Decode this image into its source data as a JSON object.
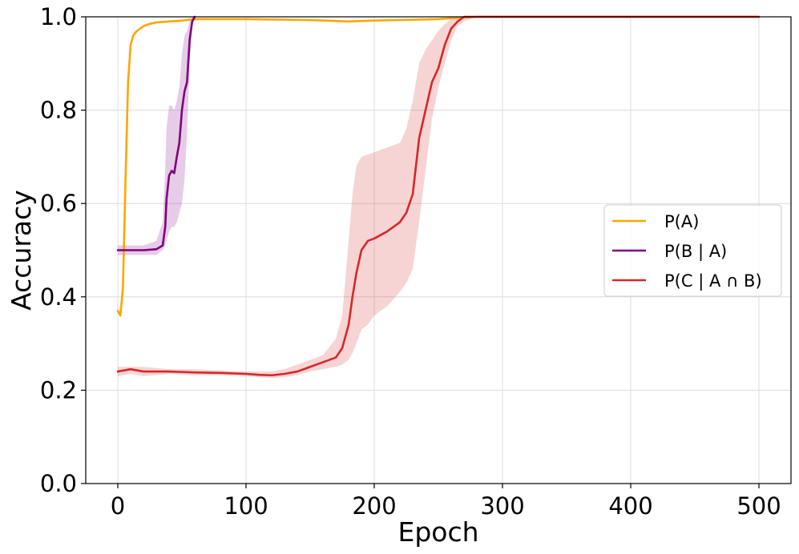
{
  "chart_data": {
    "type": "line",
    "title": "",
    "xlabel": "Epoch",
    "ylabel": "Accuracy",
    "xlim": [
      -25,
      525
    ],
    "ylim": [
      0.0,
      1.0
    ],
    "xticks": [
      0,
      100,
      200,
      300,
      400,
      500
    ],
    "yticks": [
      0.0,
      0.2,
      0.4,
      0.6,
      0.8,
      1.0
    ],
    "xtick_labels": [
      "0",
      "100",
      "200",
      "300",
      "400",
      "500"
    ],
    "ytick_labels": [
      "0.0",
      "0.2",
      "0.4",
      "0.6",
      "0.8",
      "1.0"
    ],
    "grid": true,
    "legend_position": "center-right",
    "series": [
      {
        "name": "P(A)",
        "color": "#ffa500",
        "x": [
          0,
          2,
          4,
          6,
          8,
          10,
          12,
          15,
          20,
          25,
          30,
          40,
          50,
          60,
          80,
          100,
          150,
          180,
          200,
          250,
          260,
          280,
          300,
          400,
          500
        ],
        "y": [
          0.37,
          0.36,
          0.42,
          0.65,
          0.86,
          0.94,
          0.96,
          0.97,
          0.98,
          0.985,
          0.988,
          0.99,
          0.992,
          0.995,
          0.995,
          0.995,
          0.993,
          0.99,
          0.992,
          0.995,
          0.997,
          1.0,
          1.0,
          1.0,
          1.0
        ]
      },
      {
        "name": "P(B | A)",
        "color": "#800080",
        "x": [
          0,
          5,
          10,
          20,
          30,
          35,
          37,
          38,
          40,
          42,
          44,
          46,
          48,
          50,
          52,
          54,
          56,
          58,
          60
        ],
        "y": [
          0.5,
          0.5,
          0.5,
          0.5,
          0.502,
          0.51,
          0.55,
          0.61,
          0.66,
          0.67,
          0.665,
          0.7,
          0.73,
          0.8,
          0.84,
          0.86,
          0.95,
          0.99,
          1.0
        ],
        "band_upper": [
          0.51,
          0.51,
          0.51,
          0.51,
          0.52,
          0.56,
          0.68,
          0.76,
          0.81,
          0.81,
          0.8,
          0.82,
          0.85,
          0.92,
          0.96,
          0.97,
          0.99,
          1.0,
          1.0
        ],
        "band_lower": [
          0.49,
          0.49,
          0.49,
          0.49,
          0.49,
          0.5,
          0.51,
          0.52,
          0.54,
          0.55,
          0.55,
          0.56,
          0.58,
          0.6,
          0.65,
          0.75,
          0.9,
          0.98,
          1.0
        ]
      },
      {
        "name": "P(C | A ∩ B)",
        "color": "#d62728",
        "x": [
          0,
          10,
          20,
          40,
          60,
          80,
          100,
          110,
          120,
          130,
          140,
          150,
          160,
          170,
          175,
          180,
          183,
          186,
          190,
          195,
          200,
          210,
          220,
          225,
          230,
          235,
          240,
          245,
          250,
          255,
          260,
          265,
          270,
          280,
          300,
          400,
          500
        ],
        "y": [
          0.24,
          0.245,
          0.24,
          0.24,
          0.238,
          0.237,
          0.235,
          0.233,
          0.232,
          0.235,
          0.24,
          0.25,
          0.26,
          0.27,
          0.29,
          0.34,
          0.4,
          0.45,
          0.5,
          0.52,
          0.525,
          0.54,
          0.56,
          0.58,
          0.62,
          0.74,
          0.8,
          0.86,
          0.89,
          0.94,
          0.975,
          0.99,
          1.0,
          1.0,
          1.0,
          1.0,
          1.0
        ],
        "band_upper": [
          0.25,
          0.25,
          0.25,
          0.245,
          0.245,
          0.242,
          0.24,
          0.24,
          0.24,
          0.245,
          0.255,
          0.265,
          0.275,
          0.31,
          0.36,
          0.52,
          0.62,
          0.68,
          0.7,
          0.705,
          0.71,
          0.72,
          0.73,
          0.76,
          0.82,
          0.9,
          0.93,
          0.95,
          0.97,
          0.985,
          0.995,
          1.0,
          1.0,
          1.0,
          1.0,
          1.0,
          1.0
        ],
        "band_lower": [
          0.23,
          0.235,
          0.23,
          0.235,
          0.232,
          0.232,
          0.23,
          0.228,
          0.226,
          0.228,
          0.232,
          0.24,
          0.245,
          0.25,
          0.255,
          0.265,
          0.28,
          0.3,
          0.33,
          0.34,
          0.36,
          0.38,
          0.41,
          0.43,
          0.46,
          0.56,
          0.67,
          0.78,
          0.85,
          0.9,
          0.95,
          0.98,
          0.99,
          1.0,
          1.0,
          1.0,
          1.0
        ]
      }
    ]
  }
}
